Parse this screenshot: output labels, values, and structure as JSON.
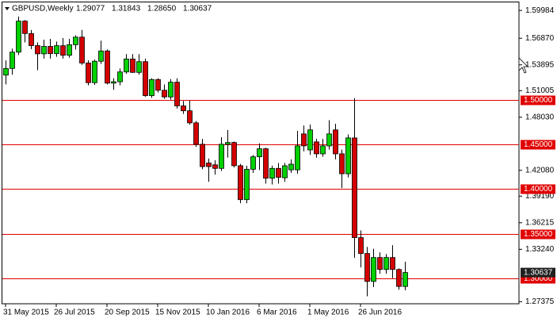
{
  "chart_data": {
    "type": "candlestick",
    "symbol": "GBPUSD,Weekly",
    "ohlc_labels": [
      "1.29077",
      "1.31843",
      "1.28650",
      "1.30637"
    ],
    "categories": [
      "31 May 2015",
      null,
      null,
      null,
      null,
      null,
      null,
      null,
      "26 Jul 2015",
      null,
      null,
      null,
      null,
      null,
      null,
      null,
      "20 Sep 2015",
      null,
      null,
      null,
      null,
      null,
      null,
      null,
      "15 Nov 2015",
      null,
      null,
      null,
      null,
      null,
      null,
      null,
      "10 Jan 2016",
      null,
      null,
      null,
      null,
      null,
      null,
      null,
      "6 Mar 2016",
      null,
      null,
      null,
      null,
      null,
      null,
      null,
      "1 May 2016",
      null,
      null,
      null,
      null,
      null,
      null,
      null,
      "26 Jun 2016",
      null,
      null,
      null,
      null,
      null,
      null,
      null
    ],
    "open": [
      1.5275,
      1.5349,
      1.5532,
      1.5879,
      1.574,
      1.5605,
      1.5513,
      1.5596,
      1.5516,
      1.5604,
      1.5497,
      1.5615,
      1.57,
      1.541,
      1.519,
      1.543,
      1.5545,
      1.5185,
      1.52,
      1.531,
      1.5455,
      1.5305,
      1.5425,
      1.5045,
      1.5225,
      1.5105,
      1.503,
      1.5195,
      1.493,
      1.4875,
      1.474,
      1.45,
      1.429,
      1.427,
      1.423,
      1.45,
      1.452,
      1.426,
      1.388,
      1.422,
      1.436,
      1.445,
      1.412,
      1.423,
      1.4125,
      1.4214,
      1.4214,
      1.4616,
      1.4437,
      1.4527,
      1.4393,
      1.4482,
      1.4661,
      1.4393,
      1.417,
      1.4571,
      1.3455,
      1.3277,
      1.2964,
      1.3232,
      1.3098,
      1.3232,
      1.3098,
      1.29077
    ],
    "high": [
      1.544,
      1.557,
      1.593,
      1.589,
      1.578,
      1.564,
      1.567,
      1.568,
      1.565,
      1.569,
      1.568,
      1.572,
      1.578,
      1.544,
      1.545,
      1.566,
      1.556,
      1.524,
      1.535,
      1.551,
      1.551,
      1.551,
      1.546,
      1.524,
      1.524,
      1.517,
      1.523,
      1.524,
      1.4985,
      1.499,
      1.476,
      1.456,
      1.434,
      1.432,
      1.458,
      1.466,
      1.453,
      1.428,
      1.426,
      1.438,
      1.451,
      1.446,
      1.426,
      1.429,
      1.429,
      1.433,
      1.465,
      1.471,
      1.472,
      1.456,
      1.456,
      1.477,
      1.473,
      1.444,
      1.461,
      1.5018,
      1.3535,
      1.335,
      1.333,
      1.329,
      1.327,
      1.337,
      1.311,
      1.31843
    ],
    "low": [
      1.517,
      1.528,
      1.55,
      1.564,
      1.5565,
      1.533,
      1.546,
      1.546,
      1.548,
      1.546,
      1.547,
      1.556,
      1.539,
      1.516,
      1.5165,
      1.54,
      1.517,
      1.511,
      1.516,
      1.529,
      1.53,
      1.528,
      1.503,
      1.502,
      1.508,
      1.501,
      1.5,
      1.49,
      1.484,
      1.472,
      1.447,
      1.422,
      1.408,
      1.416,
      1.42,
      1.435,
      1.424,
      1.384,
      1.384,
      1.418,
      1.421,
      1.406,
      1.405,
      1.406,
      1.408,
      1.418,
      1.417,
      1.442,
      1.438,
      1.435,
      1.436,
      1.444,
      1.433,
      1.401,
      1.413,
      1.3228,
      1.312,
      1.2798,
      1.29,
      1.305,
      1.305,
      1.3,
      1.287,
      1.2865
    ],
    "close": [
      1.5349,
      1.5532,
      1.5879,
      1.574,
      1.5605,
      1.5513,
      1.5596,
      1.5516,
      1.5604,
      1.5497,
      1.5615,
      1.57,
      1.541,
      1.519,
      1.543,
      1.5545,
      1.5185,
      1.52,
      1.531,
      1.5455,
      1.5305,
      1.5425,
      1.5045,
      1.5225,
      1.5105,
      1.503,
      1.5195,
      1.493,
      1.4875,
      1.474,
      1.45,
      1.425,
      1.425,
      1.423,
      1.45,
      1.452,
      1.426,
      1.388,
      1.422,
      1.436,
      1.445,
      1.412,
      1.423,
      1.413,
      1.4259,
      1.4277,
      1.4482,
      1.4482,
      1.4661,
      1.4393,
      1.4482,
      1.4616,
      1.4393,
      1.417,
      1.4571,
      1.3455,
      1.3277,
      1.2964,
      1.3232,
      1.3098,
      1.3232,
      1.3098,
      1.2908,
      1.30637
    ],
    "up_color": "#00d000",
    "down_color": "#d40000",
    "hline_color": "#e00000",
    "hlines": [
      {
        "value": 1.5,
        "label": "1.50000"
      },
      {
        "value": 1.45,
        "label": "1.45000"
      },
      {
        "value": 1.4,
        "label": "1.40000"
      },
      {
        "value": 1.35,
        "label": "1.35000"
      },
      {
        "value": 1.3,
        "label": "1.30000"
      }
    ],
    "current_price": {
      "value": 1.30637,
      "label": "1.30637"
    },
    "ylim": [
      1.2714,
      1.6089
    ],
    "yticks": [
      1.59984,
      {
        "value": 1.5687,
        "label": "1.56870"
      },
      1.53895,
      1.51005,
      {
        "value": 1.4803,
        "label": "1.48030"
      },
      {
        "value": 1.4208,
        "label": "1.42080"
      },
      {
        "value": 1.3919,
        "label": "1.39190"
      },
      1.36215,
      {
        "value": 1.3324,
        "label": "1.33240"
      },
      1.27375
    ],
    "grid": false
  }
}
